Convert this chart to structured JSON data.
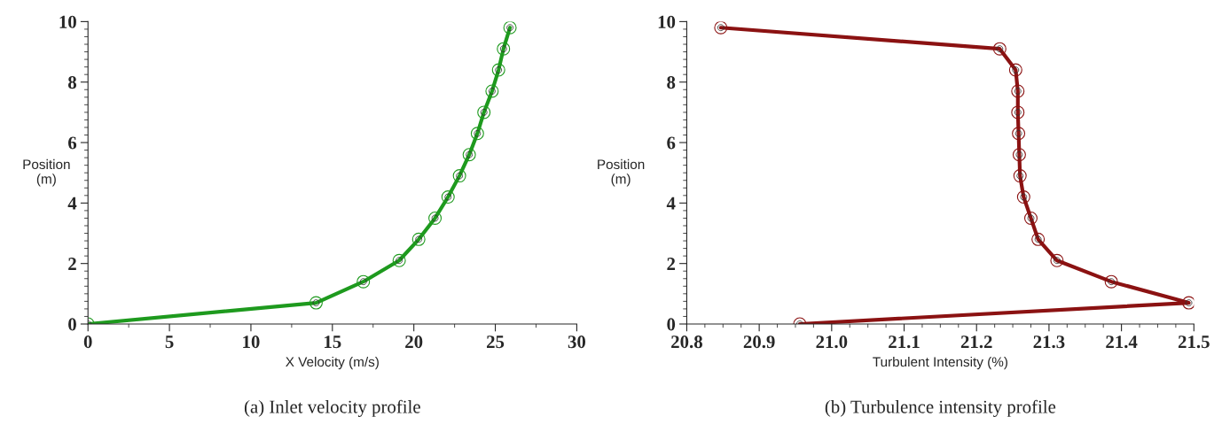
{
  "chart_data": [
    {
      "type": "line",
      "xlabel": "X Velocity (m/s)",
      "ylabel": "Position\n(m)",
      "annotations": [
        "(a) Inlet velocity profile"
      ],
      "xlim": [
        0,
        30
      ],
      "xticks": [
        0,
        5,
        10,
        15,
        20,
        25,
        30
      ],
      "ylim": [
        0,
        10
      ],
      "yticks": [
        0,
        2,
        4,
        6,
        8,
        10
      ],
      "marker": "circle",
      "grid": false,
      "line_style": "solid",
      "series": [
        {
          "color": "#1e9a1e",
          "x": [
            0,
            14.0,
            16.9,
            19.1,
            20.3,
            21.3,
            22.1,
            22.8,
            23.4,
            23.9,
            24.3,
            24.8,
            25.2,
            25.5,
            25.9
          ],
          "values": [
            0,
            0.7,
            1.4,
            2.1,
            2.8,
            3.5,
            4.2,
            4.9,
            5.6,
            6.3,
            7.0,
            7.7,
            8.4,
            9.1,
            9.8
          ]
        }
      ]
    },
    {
      "type": "line",
      "xlabel": "Turbulent Intensity (%)",
      "ylabel": "Position\n(m)",
      "annotations": [
        "(b) Turbulence intensity profile"
      ],
      "xlim": [
        20.8,
        21.5
      ],
      "xticks": [
        {
          "value": 20.8,
          "label": "20.8"
        },
        {
          "value": 20.9,
          "label": "20.9"
        },
        {
          "value": 21.0,
          "label": "21.0"
        },
        {
          "value": 21.1,
          "label": "21.1"
        },
        {
          "value": 21.2,
          "label": "21.2"
        },
        {
          "value": 21.3,
          "label": "21.3"
        },
        {
          "value": 21.4,
          "label": "21.4"
        },
        {
          "value": 21.5,
          "label": "21.5"
        }
      ],
      "ylim": [
        0,
        10
      ],
      "yticks": [
        0,
        2,
        4,
        6,
        8,
        10
      ],
      "marker": "circle",
      "grid": false,
      "line_style": "solid",
      "series": [
        {
          "color": "#8b1212",
          "x": [
            20.956,
            21.493,
            21.386,
            21.311,
            21.285,
            21.275,
            21.265,
            21.26,
            21.259,
            21.258,
            21.257,
            21.257,
            21.254,
            21.232,
            20.847
          ],
          "values": [
            0,
            0.7,
            1.4,
            2.1,
            2.8,
            3.5,
            4.2,
            4.9,
            5.6,
            6.3,
            7.0,
            7.7,
            8.4,
            9.1,
            9.8
          ]
        }
      ]
    }
  ]
}
